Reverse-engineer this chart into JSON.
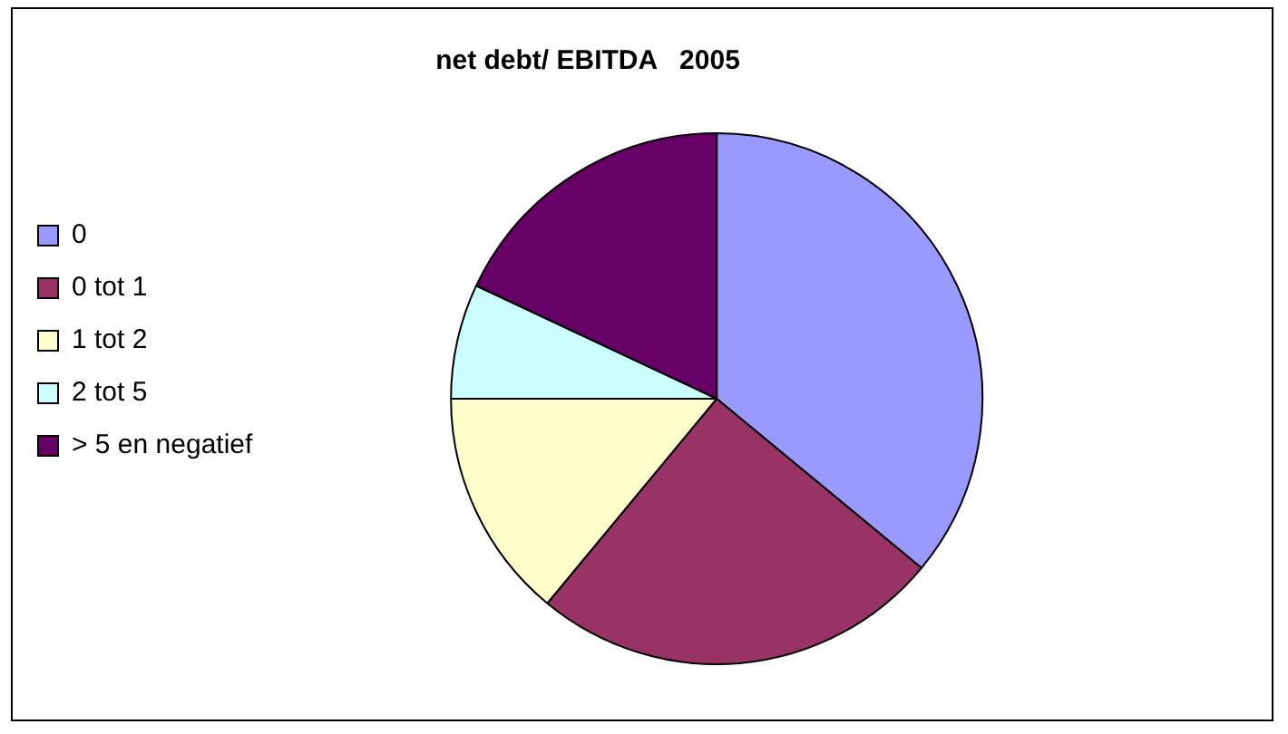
{
  "chart_data": {
    "type": "pie",
    "title": "net debt/ EBITDA   2005",
    "categories": [
      "0",
      "0 tot 1",
      "1 tot 2",
      "2 tot 5",
      "> 5 en negatief"
    ],
    "values": [
      36,
      25,
      14,
      7,
      18
    ],
    "colors": [
      "#9999ff",
      "#993366",
      "#ffffcc",
      "#ccffff",
      "#660066"
    ],
    "legend": "left"
  }
}
